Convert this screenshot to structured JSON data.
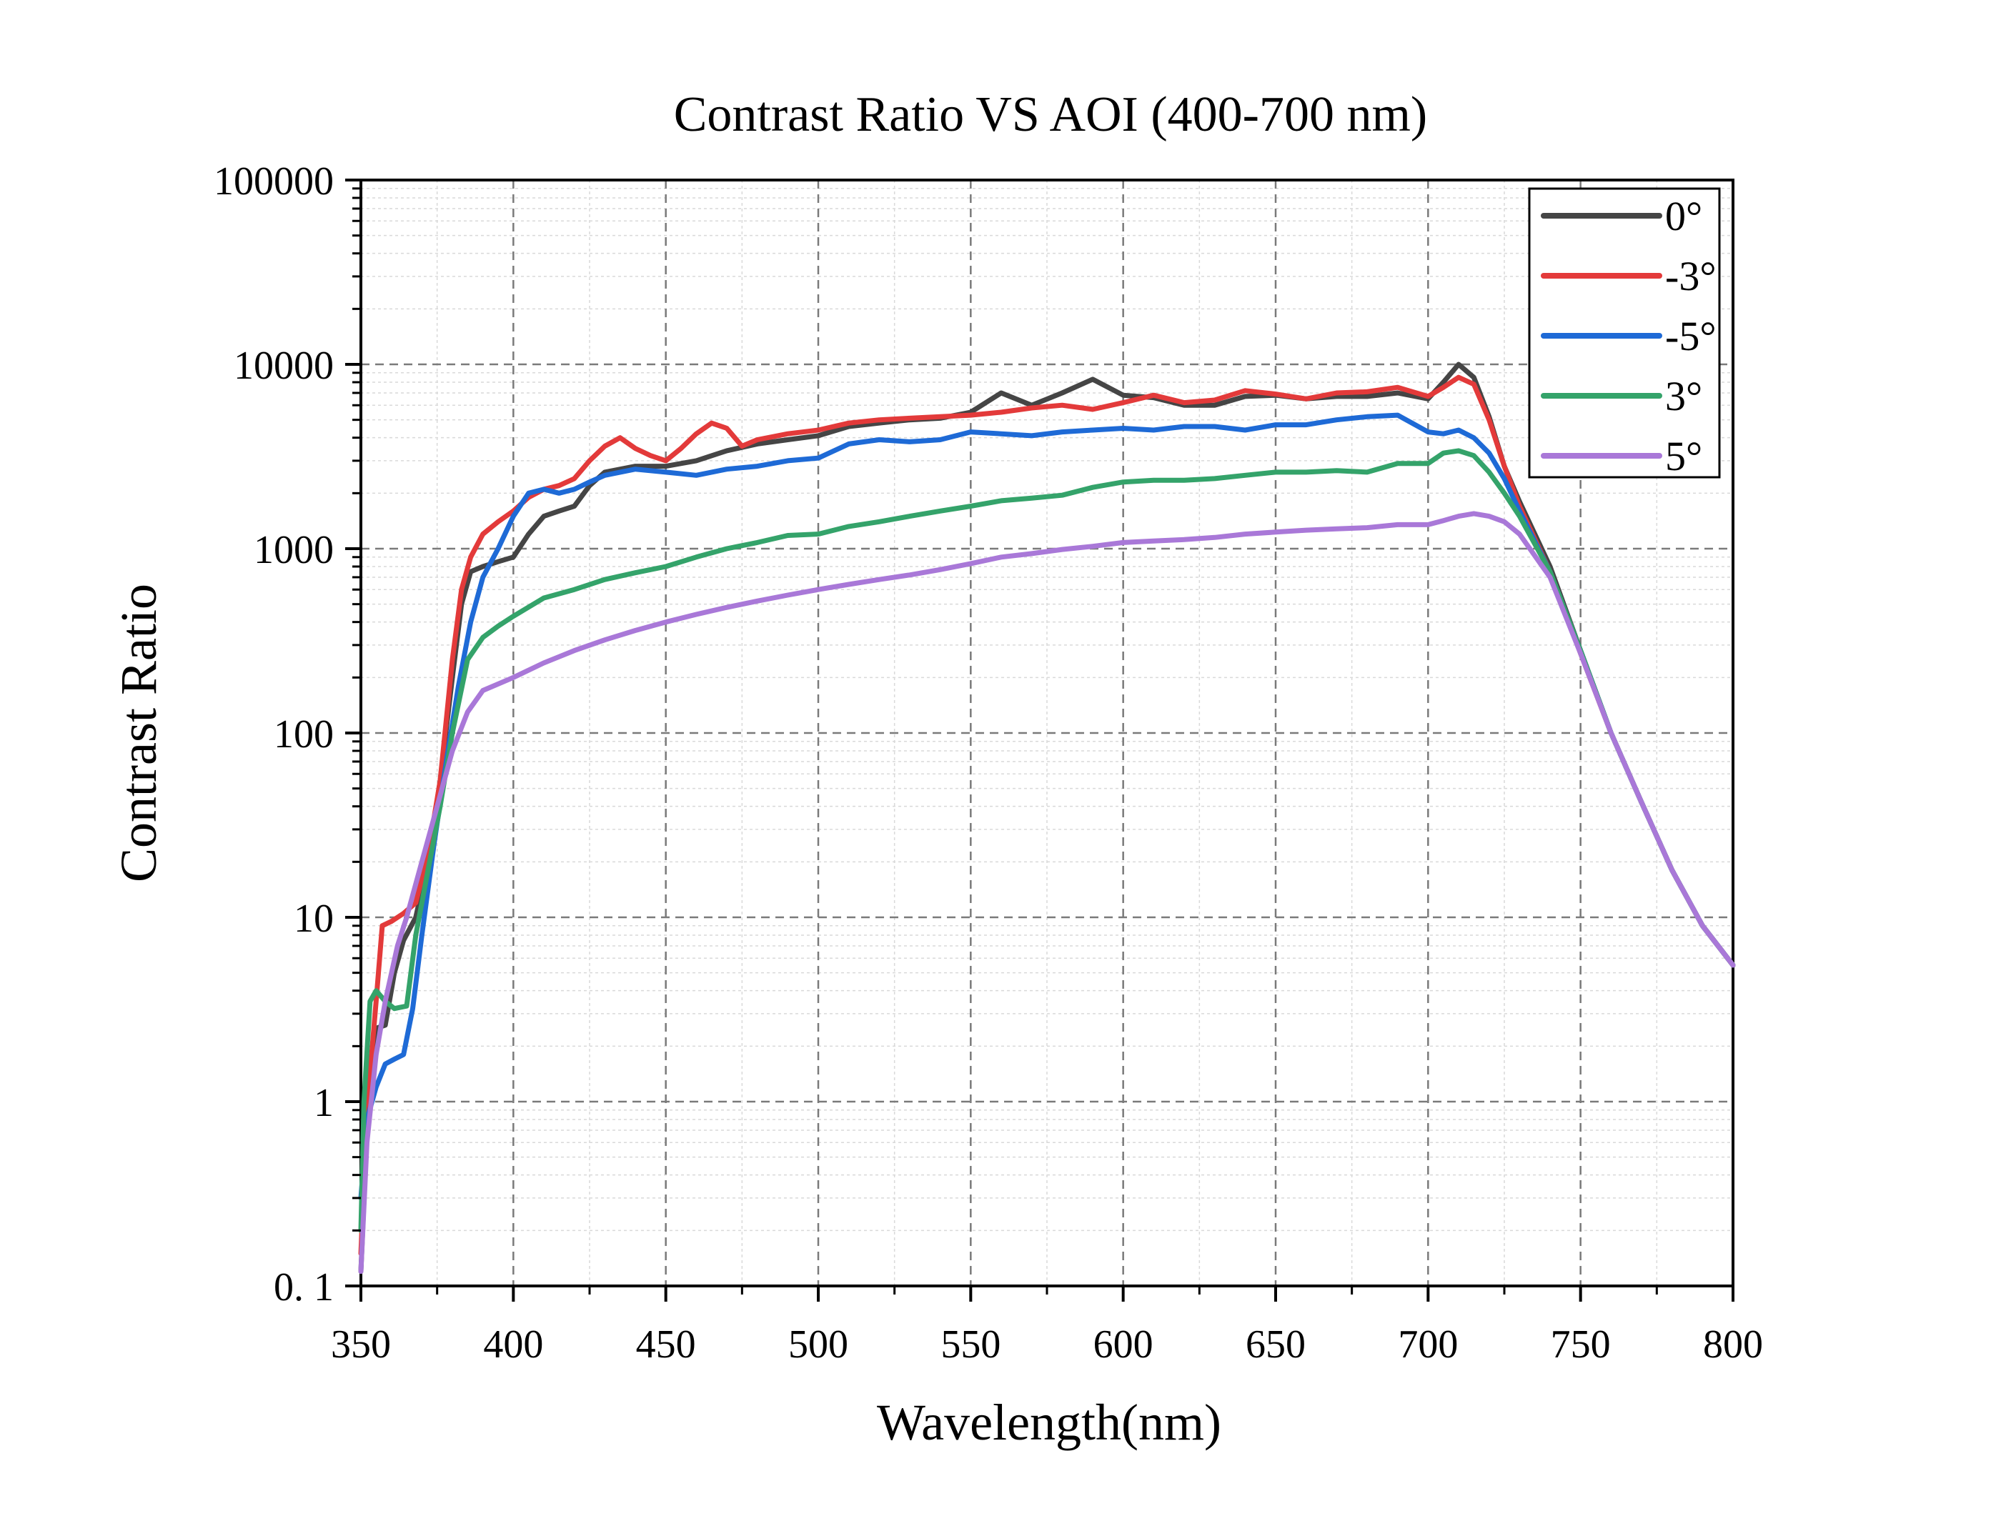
{
  "chart_data": {
    "type": "line",
    "title": "Contrast Ratio  VS  AOI (400-700 nm)",
    "xlabel": "Wavelength(nm)",
    "ylabel": "Contrast Ratio",
    "xlim": [
      350,
      800
    ],
    "ylim": [
      0.1,
      100000
    ],
    "yscale": "log",
    "grid": true,
    "legend_position": "top-right",
    "x_ticks": [
      350,
      400,
      450,
      500,
      550,
      600,
      650,
      700,
      750,
      800
    ],
    "x_tick_labels": [
      "350",
      "400",
      "450",
      "500",
      "550",
      "600",
      "650",
      "700",
      "750",
      "800"
    ],
    "y_ticks": [
      0.1,
      1,
      10,
      100,
      1000,
      10000,
      100000
    ],
    "y_tick_labels": [
      "0. 1",
      "1",
      "10",
      "100",
      "1000",
      "10000",
      "100000"
    ],
    "series": [
      {
        "name": "0°",
        "color": "#454545",
        "x": [
          350,
          352,
          355,
          358,
          361,
          364,
          368,
          372,
          376,
          380,
          383,
          386,
          390,
          395,
          400,
          405,
          410,
          415,
          420,
          425,
          430,
          440,
          450,
          460,
          470,
          480,
          490,
          500,
          510,
          520,
          530,
          540,
          550,
          560,
          570,
          580,
          590,
          600,
          610,
          620,
          630,
          640,
          650,
          660,
          670,
          680,
          690,
          700,
          705,
          710,
          715,
          720,
          725,
          730,
          740,
          750,
          760,
          770,
          780,
          790,
          800
        ],
        "y": [
          0.12,
          0.7,
          2.5,
          2.6,
          5.0,
          7.5,
          10,
          20,
          55,
          200,
          500,
          750,
          800,
          850,
          900,
          1200,
          1500,
          1600,
          1700,
          2200,
          2600,
          2800,
          2800,
          3000,
          3400,
          3700,
          3900,
          4100,
          4600,
          4800,
          5000,
          5100,
          5500,
          7000,
          6000,
          7000,
          8300,
          6800,
          6600,
          6000,
          6000,
          6700,
          6800,
          6500,
          6700,
          6700,
          7000,
          6500,
          8000,
          10000,
          8500,
          5200,
          2800,
          1800,
          800,
          280,
          100,
          42,
          18,
          9,
          5.5
        ]
      },
      {
        "name": "-3°",
        "color": "#e33a3a",
        "x": [
          350,
          352,
          355,
          357,
          360,
          364,
          368,
          372,
          376,
          380,
          383,
          386,
          390,
          395,
          400,
          405,
          410,
          415,
          420,
          425,
          430,
          435,
          440,
          445,
          450,
          455,
          460,
          465,
          470,
          475,
          480,
          490,
          500,
          510,
          520,
          530,
          540,
          550,
          560,
          570,
          580,
          590,
          600,
          610,
          620,
          630,
          640,
          650,
          660,
          670,
          680,
          690,
          700,
          705,
          710,
          715,
          720,
          725,
          730,
          740,
          750,
          760,
          770,
          780,
          790,
          800
        ],
        "y": [
          0.15,
          0.9,
          3.5,
          9.0,
          9.5,
          10.5,
          12,
          22,
          55,
          250,
          600,
          900,
          1200,
          1400,
          1600,
          1900,
          2100,
          2200,
          2400,
          3000,
          3600,
          4000,
          3500,
          3200,
          3000,
          3500,
          4200,
          4800,
          4500,
          3600,
          3900,
          4200,
          4400,
          4800,
          5000,
          5100,
          5200,
          5300,
          5500,
          5800,
          6000,
          5700,
          6200,
          6800,
          6200,
          6400,
          7200,
          6900,
          6500,
          7000,
          7100,
          7500,
          6700,
          7500,
          8500,
          7800,
          5000,
          2800,
          1700,
          750,
          270,
          100,
          42,
          18,
          9,
          5.5
        ]
      },
      {
        "name": "-5°",
        "color": "#1e6ad6",
        "x": [
          350,
          352,
          355,
          358,
          361,
          364,
          367,
          370,
          374,
          378,
          382,
          386,
          390,
          395,
          400,
          405,
          410,
          415,
          420,
          425,
          430,
          440,
          450,
          460,
          470,
          480,
          490,
          500,
          510,
          520,
          530,
          540,
          550,
          560,
          570,
          580,
          590,
          600,
          610,
          620,
          630,
          640,
          650,
          660,
          670,
          680,
          690,
          700,
          705,
          710,
          715,
          720,
          725,
          730,
          740,
          750,
          760,
          770,
          780,
          790,
          800
        ],
        "y": [
          0.3,
          0.8,
          1.2,
          1.6,
          1.7,
          1.8,
          3.2,
          8.0,
          25,
          70,
          180,
          400,
          700,
          1000,
          1500,
          2000,
          2100,
          2000,
          2100,
          2300,
          2500,
          2700,
          2600,
          2500,
          2700,
          2800,
          3000,
          3100,
          3700,
          3900,
          3800,
          3900,
          4300,
          4200,
          4100,
          4300,
          4400,
          4500,
          4400,
          4600,
          4600,
          4400,
          4700,
          4700,
          5000,
          5200,
          5300,
          4300,
          4200,
          4400,
          4000,
          3300,
          2400,
          1600,
          750,
          280,
          100,
          42,
          18,
          9,
          5.5
        ]
      },
      {
        "name": "3°",
        "color": "#34a36a",
        "x": [
          350,
          351,
          353,
          355,
          358,
          361,
          365,
          368,
          372,
          376,
          380,
          385,
          390,
          395,
          400,
          410,
          420,
          430,
          440,
          450,
          460,
          470,
          480,
          490,
          500,
          510,
          520,
          530,
          540,
          550,
          560,
          570,
          580,
          590,
          600,
          610,
          620,
          630,
          640,
          650,
          660,
          670,
          680,
          690,
          700,
          705,
          710,
          715,
          720,
          725,
          730,
          740,
          750,
          760,
          770,
          780,
          790,
          800
        ],
        "y": [
          0.2,
          1.0,
          3.5,
          4.0,
          3.5,
          3.2,
          3.3,
          8.0,
          18,
          40,
          100,
          250,
          330,
          380,
          430,
          540,
          600,
          680,
          740,
          800,
          900,
          1000,
          1080,
          1180,
          1200,
          1320,
          1400,
          1500,
          1600,
          1700,
          1820,
          1880,
          1950,
          2150,
          2300,
          2350,
          2350,
          2400,
          2500,
          2600,
          2600,
          2650,
          2600,
          2900,
          2900,
          3300,
          3400,
          3200,
          2600,
          2000,
          1500,
          750,
          280,
          100,
          42,
          18,
          9,
          5.5
        ]
      },
      {
        "name": "5°",
        "color": "#a978d8",
        "x": [
          350,
          352,
          355,
          358,
          362,
          365,
          370,
          375,
          380,
          385,
          390,
          400,
          410,
          420,
          430,
          440,
          450,
          460,
          470,
          480,
          490,
          500,
          510,
          520,
          530,
          540,
          550,
          560,
          570,
          580,
          590,
          600,
          610,
          620,
          630,
          640,
          650,
          660,
          670,
          680,
          690,
          700,
          705,
          710,
          715,
          720,
          725,
          730,
          740,
          750,
          760,
          770,
          780,
          790,
          800
        ],
        "y": [
          0.12,
          0.6,
          1.8,
          3.5,
          7.0,
          10,
          20,
          40,
          80,
          130,
          170,
          200,
          240,
          280,
          320,
          360,
          400,
          440,
          480,
          520,
          560,
          600,
          640,
          680,
          720,
          770,
          830,
          900,
          940,
          990,
          1030,
          1080,
          1100,
          1120,
          1150,
          1200,
          1230,
          1260,
          1280,
          1300,
          1350,
          1350,
          1420,
          1500,
          1550,
          1500,
          1400,
          1200,
          700,
          270,
          100,
          42,
          18,
          9,
          5.5
        ]
      }
    ]
  }
}
